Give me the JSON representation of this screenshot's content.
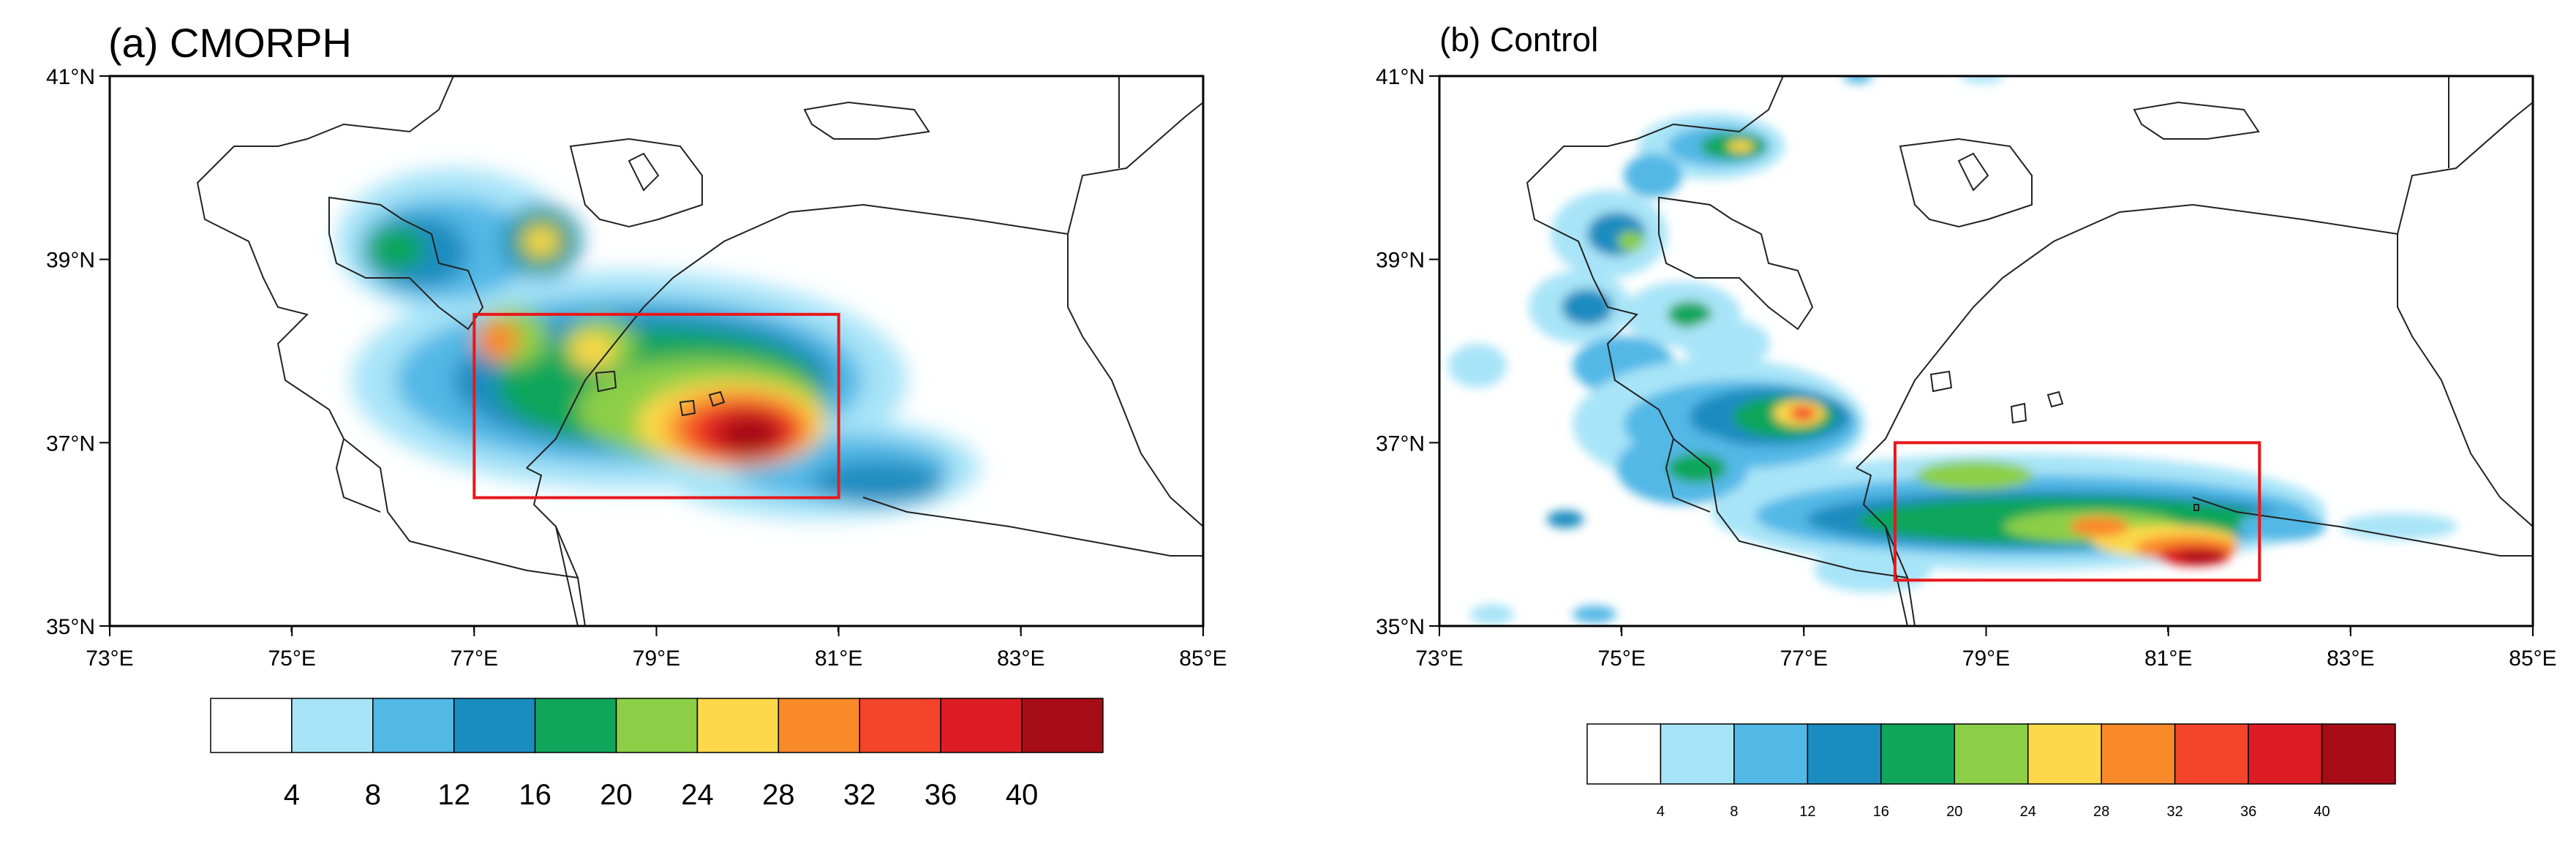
{
  "panels": [
    {
      "id": "a",
      "title": "(a)  CMORPH",
      "colorbar_label_size": "large"
    },
    {
      "id": "b",
      "title": "(b)  Control",
      "colorbar_label_size": "small"
    }
  ],
  "map": {
    "lon_range": [
      73,
      85
    ],
    "lat_range": [
      35,
      41
    ],
    "x_ticks": [
      "73°E",
      "75°E",
      "77°E",
      "79°E",
      "81°E",
      "83°E",
      "85°E"
    ],
    "y_ticks": [
      "35°N",
      "37°N",
      "39°N",
      "41°N"
    ]
  },
  "colorbar": {
    "labels": [
      "4",
      "8",
      "12",
      "16",
      "20",
      "24",
      "28",
      "32",
      "36",
      "40"
    ],
    "colors": [
      "#ffffff",
      "#a8e4f8",
      "#52b8e6",
      "#1a8cc0",
      "#0fa65a",
      "#8ccf46",
      "#fcd84a",
      "#f98a2a",
      "#f4442a",
      "#dc1c24",
      "#a60c16"
    ]
  },
  "boxes": {
    "a": {
      "lon": [
        77,
        81
      ],
      "lat": [
        36.4,
        38.4
      ]
    },
    "b": {
      "lon": [
        78,
        82
      ],
      "lat": [
        35.5,
        37.0
      ]
    }
  },
  "box_color": "#e8181c"
}
